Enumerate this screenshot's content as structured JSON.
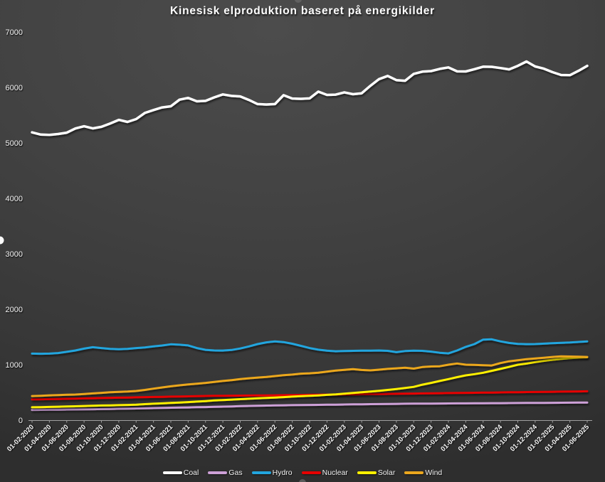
{
  "title": "Kinesisk elproduktion baseret på energikilder",
  "chart_data": {
    "type": "line",
    "x_frequency": "monthly",
    "x_tick_labels": [
      "01-02-2020",
      "01-04-2020",
      "01-06-2020",
      "01-08-2020",
      "01-10-2020",
      "01-12-2020",
      "01-02-2021",
      "01-04-2021",
      "01-06-2021",
      "01-08-2021",
      "01-10-2021",
      "01-12-2021",
      "01-02-2022",
      "01-04-2022",
      "01-06-2022",
      "01-08-2022",
      "01-10-2022",
      "01-12-2022",
      "01-02-2023",
      "01-04-2023",
      "01-06-2023",
      "01-08-2023",
      "01-10-2023",
      "01-12-2023",
      "01-02-2024",
      "01-04-2024",
      "01-06-2024",
      "01-08-2024",
      "01-10-2024",
      "01-12-2024",
      "01-02-2025",
      "01-04-2025",
      "01-06-2025"
    ],
    "y_ticks": [
      0,
      1000,
      2000,
      3000,
      4000,
      5000,
      6000,
      7000
    ],
    "ylim": [
      0,
      7000
    ],
    "grid": false,
    "legend_position": "bottom",
    "series": [
      {
        "name": "Coal",
        "color": "#ffffff",
        "values": [
          5190,
          5150,
          5145,
          5160,
          5185,
          5260,
          5300,
          5262,
          5290,
          5350,
          5415,
          5378,
          5430,
          5540,
          5592,
          5640,
          5660,
          5780,
          5812,
          5750,
          5758,
          5820,
          5875,
          5848,
          5838,
          5775,
          5700,
          5692,
          5700,
          5860,
          5800,
          5795,
          5802,
          5925,
          5865,
          5870,
          5912,
          5878,
          5895,
          6030,
          6150,
          6208,
          6132,
          6120,
          6245,
          6285,
          6295,
          6335,
          6362,
          6290,
          6288,
          6330,
          6375,
          6372,
          6350,
          6325,
          6390,
          6468,
          6378,
          6338,
          6275,
          6225,
          6220,
          6300,
          6390
        ]
      },
      {
        "name": "Gas",
        "color": "#cda0d7",
        "values": [
          185,
          186,
          188,
          190,
          192,
          194,
          196,
          198,
          200,
          203,
          206,
          209,
          212,
          215,
          218,
          221,
          224,
          227,
          230,
          233,
          236,
          240,
          244,
          248,
          252,
          256,
          260,
          263,
          266,
          268,
          270,
          272,
          274,
          276,
          278,
          280,
          282,
          284,
          286,
          288,
          290,
          292,
          294,
          296,
          297,
          298,
          299,
          300,
          301,
          302,
          303,
          304,
          305,
          306,
          307,
          308,
          309,
          310,
          311,
          312,
          313,
          314,
          315,
          317,
          318
        ]
      },
      {
        "name": "Hydro",
        "color": "#22a5de",
        "values": [
          1200,
          1198,
          1200,
          1210,
          1232,
          1256,
          1290,
          1316,
          1300,
          1284,
          1280,
          1286,
          1300,
          1312,
          1330,
          1346,
          1368,
          1360,
          1348,
          1300,
          1268,
          1256,
          1255,
          1266,
          1292,
          1330,
          1372,
          1402,
          1420,
          1408,
          1378,
          1340,
          1300,
          1270,
          1252,
          1242,
          1246,
          1250,
          1252,
          1254,
          1256,
          1250,
          1226,
          1246,
          1254,
          1250,
          1236,
          1215,
          1204,
          1256,
          1322,
          1372,
          1452,
          1458,
          1420,
          1392,
          1376,
          1370,
          1372,
          1380,
          1388,
          1395,
          1400,
          1410,
          1420
        ]
      },
      {
        "name": "Nuclear",
        "color": "#e60000",
        "values": [
          375,
          377,
          380,
          383,
          386,
          390,
          393,
          396,
          399,
          402,
          405,
          408,
          412,
          415,
          418,
          421,
          424,
          427,
          430,
          433,
          436,
          438,
          440,
          441,
          442,
          444,
          445,
          446,
          448,
          450,
          452,
          454,
          456,
          458,
          460,
          462,
          464,
          466,
          468,
          470,
          472,
          474,
          476,
          478,
          480,
          482,
          484,
          486,
          488,
          490,
          492,
          494,
          496,
          498,
          500,
          502,
          504,
          506,
          508,
          510,
          512,
          514,
          516,
          518,
          520
        ]
      },
      {
        "name": "Solar",
        "color": "#fff000",
        "values": [
          232,
          235,
          238,
          242,
          246,
          250,
          255,
          260,
          264,
          267,
          270,
          274,
          280,
          288,
          296,
          303,
          310,
          318,
          326,
          335,
          344,
          355,
          362,
          370,
          378,
          386,
          394,
          400,
          408,
          416,
          425,
          432,
          438,
          446,
          456,
          466,
          478,
          490,
          502,
          515,
          530,
          545,
          562,
          580,
          600,
          640,
          672,
          706,
          740,
          775,
          808,
          830,
          855,
          890,
          925,
          960,
          1000,
          1020,
          1048,
          1070,
          1090,
          1105,
          1118,
          1128,
          1135
        ]
      },
      {
        "name": "Wind",
        "color": "#eba71e",
        "values": [
          435,
          440,
          448,
          452,
          458,
          462,
          472,
          482,
          492,
          502,
          510,
          515,
          525,
          545,
          568,
          590,
          610,
          628,
          645,
          658,
          672,
          690,
          706,
          722,
          740,
          755,
          768,
          780,
          795,
          810,
          822,
          838,
          845,
          855,
          875,
          893,
          908,
          920,
          905,
          897,
          910,
          925,
          935,
          945,
          930,
          958,
          968,
          972,
          1000,
          1022,
          1000,
          996,
          990,
          986,
          1030,
          1062,
          1080,
          1100,
          1112,
          1126,
          1140,
          1150,
          1148,
          1144,
          1140
        ]
      }
    ]
  }
}
